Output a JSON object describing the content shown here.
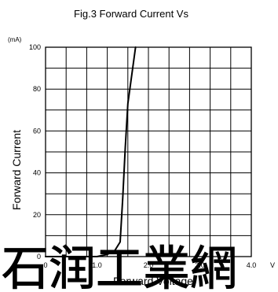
{
  "chart_data": {
    "type": "line",
    "title": "Fig.3 Forward Current Vs",
    "xlabel": "Forward  Voltage",
    "ylabel": "Forward Current",
    "x_unit": "V",
    "y_unit": "(mA)",
    "xlim": [
      0,
      4.0
    ],
    "ylim": [
      0,
      100
    ],
    "x_ticks": [
      {
        "value": 0,
        "label": "0"
      },
      {
        "value": 1.0,
        "label": "1.0"
      },
      {
        "value": 2.0,
        "label": "2.0"
      },
      {
        "value": 3.0,
        "label": "3.0"
      },
      {
        "value": 4.0,
        "label": "4.0"
      }
    ],
    "y_ticks": [
      {
        "value": 0,
        "label": "0"
      },
      {
        "value": 20,
        "label": "20"
      },
      {
        "value": 40,
        "label": "40"
      },
      {
        "value": 60,
        "label": "60"
      },
      {
        "value": 80,
        "label": "80"
      },
      {
        "value": 100,
        "label": "100"
      }
    ],
    "grid": true,
    "x_grid_step": 0.4,
    "y_grid_step": 10,
    "series": [
      {
        "name": "",
        "color": "#000000",
        "x": [
          0.0,
          1.0,
          1.2,
          1.35,
          1.45,
          1.5,
          1.55,
          1.6,
          1.75
        ],
        "y": [
          0.0,
          0.0,
          1.0,
          3.0,
          7.0,
          28.0,
          52.0,
          73.0,
          100.0
        ]
      }
    ]
  },
  "watermark": "石润工業網"
}
